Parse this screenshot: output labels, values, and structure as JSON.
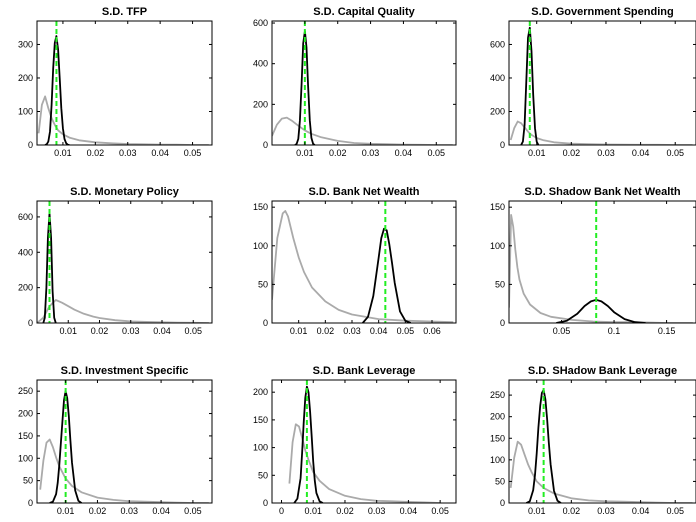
{
  "colors": {
    "prior": "#aaaaaa",
    "posterior": "#000000",
    "mode": "#22ee22"
  },
  "chart_data": [
    {
      "type": "line",
      "title": "S.D. TFP",
      "xlim": [
        0.002,
        0.056
      ],
      "ylim": [
        0,
        370
      ],
      "xticks": [
        0.01,
        0.02,
        0.03,
        0.04,
        0.05
      ],
      "xtick_labels": [
        "0.01",
        "0.02",
        "0.03",
        "0.04",
        "0.05"
      ],
      "yticks": [
        0,
        100,
        200,
        300
      ],
      "ytick_labels": [
        "0",
        "100",
        "200",
        "300"
      ],
      "mode_line": 0.008,
      "series": [
        {
          "role": "prior",
          "x": [
            0.0025,
            0.0035,
            0.0045,
            0.0055,
            0.0065,
            0.0075,
            0.0085,
            0.01,
            0.012,
            0.015,
            0.02,
            0.025,
            0.03,
            0.035,
            0.04,
            0.045,
            0.05,
            0.055
          ],
          "y": [
            35,
            120,
            145,
            110,
            80,
            60,
            44,
            32,
            22,
            14,
            8,
            5,
            3,
            2,
            1,
            1,
            0,
            0
          ]
        },
        {
          "role": "posterior",
          "x": [
            0.0045,
            0.005,
            0.0055,
            0.006,
            0.0065,
            0.007,
            0.0075,
            0.008,
            0.0085,
            0.009,
            0.0095,
            0.01,
            0.0105,
            0.011,
            0.0115,
            0.012
          ],
          "y": [
            0,
            2,
            10,
            40,
            120,
            230,
            305,
            325,
            285,
            200,
            110,
            50,
            18,
            5,
            1,
            0
          ]
        }
      ]
    },
    {
      "type": "line",
      "title": "S.D. Capital Quality",
      "xlim": [
        0.0,
        0.056
      ],
      "ylim": [
        0,
        610
      ],
      "xticks": [
        0.01,
        0.02,
        0.03,
        0.04,
        0.05
      ],
      "xtick_labels": [
        "0.01",
        "0.02",
        "0.03",
        "0.04",
        "0.05"
      ],
      "yticks": [
        0,
        200,
        400,
        600
      ],
      "ytick_labels": [
        "0",
        "200",
        "400",
        "600"
      ],
      "mode_line": 0.01,
      "series": [
        {
          "role": "prior",
          "x": [
            0.0,
            0.0015,
            0.003,
            0.0045,
            0.006,
            0.008,
            0.01,
            0.012,
            0.015,
            0.02,
            0.025,
            0.03,
            0.035,
            0.04,
            0.045,
            0.05,
            0.055
          ],
          "y": [
            45,
            100,
            130,
            135,
            120,
            95,
            72,
            55,
            38,
            20,
            10,
            6,
            4,
            2,
            1,
            0,
            0
          ]
        },
        {
          "role": "posterior",
          "x": [
            0.007,
            0.0075,
            0.008,
            0.0085,
            0.009,
            0.0095,
            0.01,
            0.0105,
            0.011,
            0.0115,
            0.012,
            0.0125,
            0.013
          ],
          "y": [
            0,
            5,
            30,
            120,
            300,
            500,
            560,
            480,
            290,
            120,
            35,
            6,
            0
          ]
        }
      ]
    },
    {
      "type": "line",
      "title": "S.D. Government Spending",
      "xlim": [
        0.002,
        0.056
      ],
      "ylim": [
        0,
        740
      ],
      "xticks": [
        0.01,
        0.02,
        0.03,
        0.04,
        0.05
      ],
      "xtick_labels": [
        "0.01",
        "0.02",
        "0.03",
        "0.04",
        "0.05"
      ],
      "yticks": [
        0,
        200,
        400,
        600
      ],
      "ytick_labels": [
        "0",
        "200",
        "400",
        "600"
      ],
      "mode_line": 0.008,
      "series": [
        {
          "role": "prior",
          "x": [
            0.0025,
            0.0035,
            0.0045,
            0.0055,
            0.0065,
            0.0075,
            0.0085,
            0.01,
            0.012,
            0.015,
            0.02,
            0.025,
            0.03,
            0.035,
            0.04,
            0.045,
            0.05,
            0.055
          ],
          "y": [
            30,
            100,
            140,
            130,
            105,
            80,
            60,
            42,
            28,
            16,
            8,
            5,
            3,
            2,
            1,
            1,
            0,
            0
          ]
        },
        {
          "role": "posterior",
          "x": [
            0.0055,
            0.006,
            0.0065,
            0.007,
            0.0075,
            0.008,
            0.0085,
            0.009,
            0.0095,
            0.01,
            0.0105
          ],
          "y": [
            0,
            20,
            120,
            380,
            640,
            700,
            560,
            300,
            100,
            20,
            0
          ]
        }
      ]
    },
    {
      "type": "line",
      "title": "S.D. Monetary Policy",
      "xlim": [
        0.0,
        0.056
      ],
      "ylim": [
        0,
        690
      ],
      "xticks": [
        0.01,
        0.02,
        0.03,
        0.04,
        0.05
      ],
      "xtick_labels": [
        "0.01",
        "0.02",
        "0.03",
        "0.04",
        "0.05"
      ],
      "yticks": [
        0,
        200,
        400,
        600
      ],
      "ytick_labels": [
        "0",
        "200",
        "400",
        "600"
      ],
      "mode_line": 0.004,
      "series": [
        {
          "role": "prior",
          "x": [
            0.0,
            0.002,
            0.004,
            0.006,
            0.008,
            0.01,
            0.012,
            0.015,
            0.018,
            0.02,
            0.025,
            0.03,
            0.035,
            0.04,
            0.045,
            0.05,
            0.055
          ],
          "y": [
            0,
            30,
            95,
            130,
            115,
            95,
            75,
            52,
            36,
            28,
            16,
            9,
            6,
            4,
            2,
            1,
            0
          ]
        },
        {
          "role": "posterior",
          "x": [
            0.002,
            0.0025,
            0.003,
            0.0035,
            0.004,
            0.0045,
            0.005,
            0.0055,
            0.006
          ],
          "y": [
            0,
            30,
            200,
            480,
            620,
            480,
            180,
            30,
            0
          ]
        }
      ]
    },
    {
      "type": "line",
      "title": "S.D. Bank Net Wealth",
      "xlim": [
        0.0,
        0.069
      ],
      "ylim": [
        0,
        158
      ],
      "xticks": [
        0.01,
        0.02,
        0.03,
        0.04,
        0.05,
        0.06
      ],
      "xtick_labels": [
        "0.01",
        "0.02",
        "0.03",
        "0.04",
        "0.05",
        "0.06"
      ],
      "yticks": [
        0,
        50,
        100,
        150
      ],
      "ytick_labels": [
        "0",
        "50",
        "100",
        "150"
      ],
      "mode_line": 0.0425,
      "series": [
        {
          "role": "prior",
          "x": [
            0.0,
            0.002,
            0.004,
            0.005,
            0.006,
            0.008,
            0.01,
            0.012,
            0.015,
            0.02,
            0.025,
            0.03,
            0.04,
            0.05,
            0.06,
            0.068
          ],
          "y": [
            30,
            110,
            142,
            145,
            138,
            110,
            85,
            66,
            46,
            28,
            17,
            11,
            5,
            3,
            2,
            1
          ]
        },
        {
          "role": "posterior",
          "x": [
            0.034,
            0.036,
            0.038,
            0.04,
            0.041,
            0.042,
            0.043,
            0.044,
            0.045,
            0.046,
            0.048,
            0.05,
            0.052
          ],
          "y": [
            0,
            8,
            35,
            85,
            110,
            122,
            120,
            102,
            78,
            52,
            15,
            3,
            0
          ]
        }
      ]
    },
    {
      "type": "line",
      "title": "S.D. Shadow Bank Net Wealth",
      "xlim": [
        0.0,
        0.178
      ],
      "ylim": [
        0,
        158
      ],
      "xticks": [
        0.05,
        0.1,
        0.15
      ],
      "xtick_labels": [
        "0.05",
        "0.1",
        "0.15"
      ],
      "yticks": [
        0,
        50,
        100,
        150
      ],
      "ytick_labels": [
        "0",
        "50",
        "100",
        "150"
      ],
      "mode_line": 0.083,
      "series": [
        {
          "role": "prior",
          "x": [
            0.0,
            0.002,
            0.004,
            0.006,
            0.008,
            0.01,
            0.014,
            0.02,
            0.03,
            0.04,
            0.06,
            0.08,
            0.1,
            0.12,
            0.15,
            0.175
          ],
          "y": [
            20,
            140,
            125,
            95,
            72,
            56,
            38,
            24,
            13,
            8,
            4,
            2,
            1,
            1,
            0,
            0
          ]
        },
        {
          "role": "posterior",
          "x": [
            0.045,
            0.055,
            0.065,
            0.072,
            0.078,
            0.083,
            0.088,
            0.094,
            0.1,
            0.11,
            0.12,
            0.13
          ],
          "y": [
            0,
            3,
            12,
            22,
            28,
            30,
            28,
            22,
            14,
            5,
            1,
            0
          ]
        }
      ]
    },
    {
      "type": "line",
      "title": "S.D. Investment Specific",
      "xlim": [
        0.001,
        0.056
      ],
      "ylim": [
        0,
        275
      ],
      "xticks": [
        0.01,
        0.02,
        0.03,
        0.04,
        0.05
      ],
      "xtick_labels": [
        "0.01",
        "0.02",
        "0.03",
        "0.04",
        "0.05"
      ],
      "yticks": [
        0,
        50,
        100,
        150,
        200,
        250
      ],
      "ytick_labels": [
        "0",
        "50",
        "100",
        "150",
        "200",
        "250"
      ],
      "mode_line": 0.01,
      "series": [
        {
          "role": "prior",
          "x": [
            0.002,
            0.003,
            0.004,
            0.005,
            0.006,
            0.007,
            0.008,
            0.01,
            0.012,
            0.015,
            0.02,
            0.025,
            0.03,
            0.035,
            0.04,
            0.045,
            0.05,
            0.055
          ],
          "y": [
            30,
            95,
            135,
            142,
            125,
            102,
            82,
            55,
            38,
            24,
            12,
            7,
            4,
            3,
            2,
            1,
            0,
            0
          ]
        },
        {
          "role": "posterior",
          "x": [
            0.005,
            0.006,
            0.007,
            0.0075,
            0.008,
            0.0085,
            0.009,
            0.0095,
            0.01,
            0.0105,
            0.011,
            0.0115,
            0.012,
            0.013,
            0.014,
            0.015
          ],
          "y": [
            0,
            3,
            20,
            45,
            85,
            135,
            185,
            230,
            250,
            235,
            195,
            140,
            90,
            28,
            5,
            0
          ]
        }
      ]
    },
    {
      "type": "line",
      "title": "S.D. Bank Leverage",
      "xlim": [
        -0.003,
        0.055
      ],
      "ylim": [
        0,
        222
      ],
      "xticks": [
        0,
        0.01,
        0.02,
        0.03,
        0.04,
        0.05
      ],
      "xtick_labels": [
        "0",
        "0.01",
        "0.02",
        "0.03",
        "0.04",
        "0.05"
      ],
      "yticks": [
        0,
        50,
        100,
        150,
        200
      ],
      "ytick_labels": [
        "0",
        "50",
        "100",
        "150",
        "200"
      ],
      "mode_line": 0.008,
      "series": [
        {
          "role": "prior",
          "x": [
            0.0025,
            0.0035,
            0.0045,
            0.0055,
            0.0065,
            0.0075,
            0.0085,
            0.01,
            0.012,
            0.015,
            0.02,
            0.025,
            0.03,
            0.035,
            0.04,
            0.045,
            0.05
          ],
          "y": [
            35,
            110,
            142,
            138,
            118,
            95,
            78,
            56,
            40,
            25,
            13,
            7,
            4,
            3,
            2,
            1,
            0
          ]
        },
        {
          "role": "posterior",
          "x": [
            0.004,
            0.005,
            0.006,
            0.0065,
            0.007,
            0.0075,
            0.008,
            0.0085,
            0.009,
            0.0095,
            0.01,
            0.0105,
            0.011,
            0.012,
            0.013
          ],
          "y": [
            0,
            8,
            45,
            90,
            145,
            190,
            210,
            200,
            165,
            120,
            75,
            40,
            18,
            3,
            0
          ]
        }
      ]
    },
    {
      "type": "line",
      "title": "S.D. SHadow Bank Leverage",
      "xlim": [
        0.002,
        0.056
      ],
      "ylim": [
        0,
        285
      ],
      "xticks": [
        0.01,
        0.02,
        0.03,
        0.04,
        0.05
      ],
      "xtick_labels": [
        "0.01",
        "0.02",
        "0.03",
        "0.04",
        "0.05"
      ],
      "yticks": [
        0,
        50,
        100,
        150,
        200,
        250
      ],
      "ytick_labels": [
        "0",
        "50",
        "100",
        "150",
        "200",
        "250"
      ],
      "mode_line": 0.012,
      "series": [
        {
          "role": "prior",
          "x": [
            0.0025,
            0.0035,
            0.0045,
            0.0055,
            0.0065,
            0.0075,
            0.0085,
            0.01,
            0.012,
            0.015,
            0.02,
            0.025,
            0.03,
            0.035,
            0.04,
            0.045,
            0.05,
            0.055
          ],
          "y": [
            35,
            105,
            142,
            135,
            112,
            90,
            72,
            50,
            35,
            22,
            11,
            6,
            4,
            3,
            2,
            1,
            0,
            0
          ]
        },
        {
          "role": "posterior",
          "x": [
            0.007,
            0.008,
            0.009,
            0.0095,
            0.01,
            0.0105,
            0.011,
            0.0115,
            0.012,
            0.0125,
            0.013,
            0.0135,
            0.014,
            0.015,
            0.016,
            0.017
          ],
          "y": [
            0,
            4,
            30,
            65,
            115,
            175,
            225,
            255,
            262,
            240,
            195,
            140,
            90,
            28,
            5,
            0
          ]
        }
      ]
    }
  ]
}
